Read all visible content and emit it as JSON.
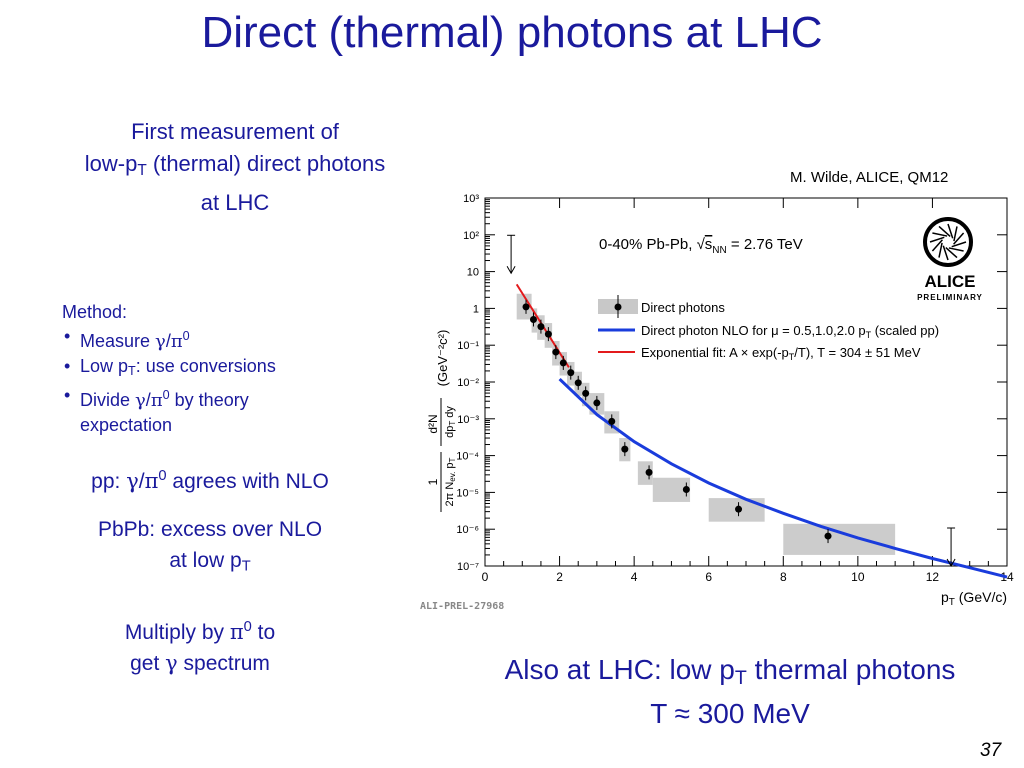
{
  "title": "Direct (thermal) photons at LHC",
  "intro": {
    "line1": "First measurement of",
    "line2_pre": "low-p",
    "line2_sub": "T",
    "line2_post": " (thermal) direct photons",
    "line3": "at LHC"
  },
  "method": {
    "heading": "Method:",
    "item1_label": "Measure ",
    "item2_pre": "Low p",
    "item2_sub": "T",
    "item2_post": ": use conversions",
    "item3_label": "Divide ",
    "item3_post": " by theory",
    "item3_cont": "expectation",
    "ratio": {
      "gamma": "γ",
      "slash": "/",
      "pi": "π",
      "zero": "0"
    }
  },
  "pp_note": {
    "pre": "pp: ",
    "post": " agrees with NLO"
  },
  "pbpb_note": {
    "line1": "PbPb: excess over NLO",
    "line2_pre": "at low p",
    "line2_sub": "T"
  },
  "multiply_note": {
    "pre": "Multiply by ",
    "pi": "π",
    "zero": "0",
    "post": " to",
    "line2_pre": "get ",
    "gamma": "γ",
    "line2_post": " spectrum"
  },
  "bottom_note": {
    "pre": "Also at LHC: low p",
    "sub": "T",
    "post": " thermal photons",
    "line2": "T ≈ 300 MeV"
  },
  "credit": "M. Wilde, ALICE, QM12",
  "slide_number": "37",
  "figure": {
    "annotation": {
      "pre": "0-40%  Pb-Pb, ",
      "sqrt": "√",
      "s": "s",
      "nn": "NN",
      "post": " = 2.76 TeV"
    },
    "logo": {
      "name": "ALICE",
      "sub": "PRELIMINARY"
    },
    "tag": "ALI-PREL-27968",
    "ylabel": {
      "frac1": "1",
      "den1_pre": "2π N",
      "den1_sub": "ev.",
      "den1_post": " p",
      "den1_sub2": "T",
      "frac2_num": "d²N",
      "frac2_den_pre": "dp",
      "frac2_den_sub": "T",
      "frac2_den_post": " dy",
      "units": "(GeV⁻²c²)"
    },
    "xlabel": {
      "pre": "p",
      "sub": "T",
      "post": " (GeV/c)"
    },
    "legend": [
      {
        "pre": "Direct photons"
      },
      {
        "pre": "Direct photon NLO for ",
        "mu": "μ",
        "mid": " = 0.5,1.0,2.0 p",
        "sub": "T",
        "post": " (scaled pp)"
      },
      {
        "pre": "Exponential fit: A × exp(-p",
        "sub": "T",
        "post": "/T), T = 304 ± 51 MeV"
      }
    ],
    "colors": {
      "nlo": "#1a3cdc",
      "fit": "#e31a1c",
      "box": "#cccccc",
      "points": "#000000"
    }
  },
  "chart_data": {
    "type": "scatter",
    "xlabel": "p_T (GeV/c)",
    "ylabel": "1/(2π N_ev. p_T) d²N/(dp_T dy) (GeV⁻²c²)",
    "xlim": [
      0,
      14
    ],
    "ylim": [
      1e-07,
      1000
    ],
    "y_log_scale": true,
    "x_ticks": [
      0,
      2,
      4,
      6,
      8,
      10,
      12,
      14
    ],
    "y_ticks": [
      "10⁻⁷",
      "10⁻⁶",
      "10⁻⁵",
      "10⁻⁴",
      "10⁻³",
      "10⁻²",
      "10⁻¹",
      "1",
      "10",
      "10²",
      "10³"
    ],
    "series": [
      {
        "name": "Direct photons",
        "points": [
          {
            "x": 1.1,
            "y": 1.1,
            "sys_x": [
              0.85,
              1.25
            ],
            "sys_y": [
              0.5,
              2.5
            ]
          },
          {
            "x": 1.3,
            "y": 0.5,
            "sys_x": [
              1.25,
              1.4
            ],
            "sys_y": [
              0.22,
              1.0
            ]
          },
          {
            "x": 1.5,
            "y": 0.32,
            "sys_x": [
              1.4,
              1.6
            ],
            "sys_y": [
              0.14,
              0.65
            ]
          },
          {
            "x": 1.7,
            "y": 0.2,
            "sys_x": [
              1.6,
              1.8
            ],
            "sys_y": [
              0.085,
              0.4
            ]
          },
          {
            "x": 1.9,
            "y": 0.065,
            "sys_x": [
              1.8,
              2.0
            ],
            "sys_y": [
              0.028,
              0.13
            ]
          },
          {
            "x": 2.1,
            "y": 0.033,
            "sys_x": [
              2.0,
              2.2
            ],
            "sys_y": [
              0.015,
              0.065
            ]
          },
          {
            "x": 2.3,
            "y": 0.018,
            "sys_x": [
              2.2,
              2.4
            ],
            "sys_y": [
              0.008,
              0.035
            ]
          },
          {
            "x": 2.5,
            "y": 0.0095,
            "sys_x": [
              2.4,
              2.6
            ],
            "sys_y": [
              0.0042,
              0.019
            ]
          },
          {
            "x": 2.7,
            "y": 0.0049,
            "sys_x": [
              2.6,
              2.8
            ],
            "sys_y": [
              0.0022,
              0.0095
            ]
          },
          {
            "x": 3.0,
            "y": 0.0027,
            "sys_x": [
              2.8,
              3.2
            ],
            "sys_y": [
              0.0013,
              0.005
            ]
          },
          {
            "x": 3.4,
            "y": 0.00085,
            "sys_x": [
              3.2,
              3.6
            ],
            "sys_y": [
              0.0004,
              0.0016
            ]
          },
          {
            "x": 3.75,
            "y": 0.00015,
            "sys_x": [
              3.6,
              3.9
            ],
            "sys_y": [
              7e-05,
              0.0003
            ]
          },
          {
            "x": 4.4,
            "y": 3.5e-05,
            "sys_x": [
              4.1,
              4.5
            ],
            "sys_y": [
              1.6e-05,
              7e-05
            ]
          },
          {
            "x": 5.4,
            "y": 1.2e-05,
            "sys_x": [
              4.5,
              5.5
            ],
            "sys_y": [
              5.5e-06,
              2.5e-05
            ]
          },
          {
            "x": 6.8,
            "y": 3.5e-06,
            "sys_x": [
              6.0,
              7.5
            ],
            "sys_y": [
              1.6e-06,
              7e-06
            ]
          },
          {
            "x": 9.2,
            "y": 6.5e-07,
            "sys_x": [
              8.0,
              11.0
            ],
            "sys_y": [
              2e-07,
              1.4e-06
            ]
          }
        ],
        "upper_limits": [
          {
            "x": 0.7,
            "y": 9
          },
          {
            "x": 12.5,
            "y": 1e-07
          }
        ]
      },
      {
        "name": "Direct photon NLO for μ = 0.5,1.0,2.0 p_T (scaled pp)",
        "x": [
          2.0,
          3.0,
          4.0,
          5.0,
          6.0,
          7.0,
          8.0,
          9.0,
          10.0,
          11.0,
          12.0,
          13.0,
          14.0
        ],
        "y": [
          0.012,
          0.0013,
          0.00024,
          6e-05,
          1.8e-05,
          6.5e-06,
          2.7e-06,
          1.2e-06,
          5.8e-07,
          3e-07,
          1.6e-07,
          9e-08,
          5e-08
        ]
      },
      {
        "name": "Exponential fit: A × exp(-p_T/T), T = 304 ± 51 MeV",
        "x": [
          0.85,
          2.25
        ],
        "y": [
          4.5,
          0.025
        ]
      }
    ]
  }
}
